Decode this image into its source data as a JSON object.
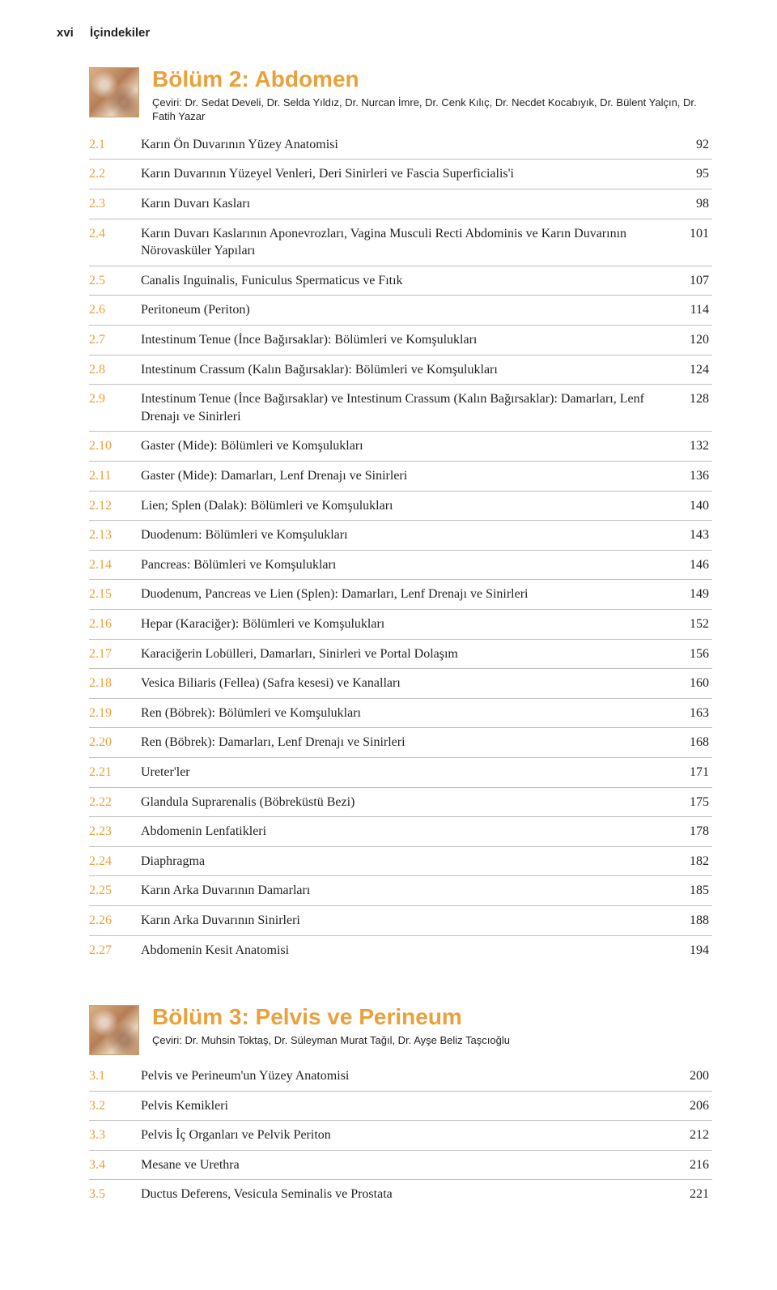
{
  "colors": {
    "accent": "#e9a13b",
    "text": "#231f20",
    "rule": "rgba(0,0,0,0.25)",
    "background": "#ffffff"
  },
  "typography": {
    "body_font": "Georgia, 'Times New Roman', serif",
    "heading_font": "Arial, Helvetica, sans-serif",
    "section_title_size_pt": 21,
    "body_size_pt": 12,
    "subtitle_size_pt": 10
  },
  "running_head": {
    "page_label": "xvi",
    "section_label": "İçindekiler"
  },
  "sections": [
    {
      "id": "abdomen",
      "title": "Bölüm 2: Abdomen",
      "subtitle": "Çeviri: Dr. Sedat Develi, Dr. Selda Yıldız, Dr. Nurcan İmre, Dr. Cenk Kılıç, Dr. Necdet Kocabıyık, Dr. Bülent Yalçın, Dr. Fatih Yazar",
      "entries": [
        {
          "num": "2.1",
          "title": "Karın Ön Duvarının Yüzey Anatomisi",
          "page": "92"
        },
        {
          "num": "2.2",
          "title": "Karın Duvarının Yüzeyel Venleri, Deri Sinirleri ve Fascia Superficialis'i",
          "page": "95"
        },
        {
          "num": "2.3",
          "title": "Karın Duvarı Kasları",
          "page": "98"
        },
        {
          "num": "2.4",
          "title": "Karın Duvarı Kaslarının Aponevrozları, Vagina Musculi Recti Abdominis ve Karın Duvarının Nörovasküler Yapıları",
          "page": "101"
        },
        {
          "num": "2.5",
          "title": "Canalis Inguinalis, Funiculus Spermaticus ve Fıtık",
          "page": "107"
        },
        {
          "num": "2.6",
          "title": "Peritoneum (Periton)",
          "page": "114"
        },
        {
          "num": "2.7",
          "title": "Intestinum Tenue (İnce Bağırsaklar): Bölümleri ve Komşulukları",
          "page": "120"
        },
        {
          "num": "2.8",
          "title": "Intestinum Crassum (Kalın Bağırsaklar): Bölümleri ve Komşulukları",
          "page": "124"
        },
        {
          "num": "2.9",
          "title": "Intestinum Tenue (İnce Bağırsaklar) ve Intestinum Crassum (Kalın Bağırsaklar): Damarları, Lenf Drenajı ve Sinirleri",
          "page": "128"
        },
        {
          "num": "2.10",
          "title": "Gaster (Mide): Bölümleri ve Komşulukları",
          "page": "132"
        },
        {
          "num": "2.11",
          "title": "Gaster (Mide): Damarları, Lenf Drenajı ve Sinirleri",
          "page": "136"
        },
        {
          "num": "2.12",
          "title": "Lien; Splen (Dalak): Bölümleri ve Komşulukları",
          "page": "140"
        },
        {
          "num": "2.13",
          "title": "Duodenum: Bölümleri ve Komşulukları",
          "page": "143"
        },
        {
          "num": "2.14",
          "title": "Pancreas: Bölümleri ve Komşulukları",
          "page": "146"
        },
        {
          "num": "2.15",
          "title": "Duodenum, Pancreas ve Lien (Splen): Damarları, Lenf Drenajı ve Sinirleri",
          "page": "149"
        },
        {
          "num": "2.16",
          "title": "Hepar (Karaciğer): Bölümleri ve Komşulukları",
          "page": "152"
        },
        {
          "num": "2.17",
          "title": "Karaciğerin Lobülleri, Damarları, Sinirleri ve Portal Dolaşım",
          "page": "156"
        },
        {
          "num": "2.18",
          "title": "Vesica Biliaris (Fellea) (Safra kesesi) ve Kanalları",
          "page": "160"
        },
        {
          "num": "2.19",
          "title": "Ren (Böbrek): Bölümleri ve Komşulukları",
          "page": "163"
        },
        {
          "num": "2.20",
          "title": "Ren (Böbrek): Damarları, Lenf Drenajı ve Sinirleri",
          "page": "168"
        },
        {
          "num": "2.21",
          "title": "Ureter'ler",
          "page": "171"
        },
        {
          "num": "2.22",
          "title": "Glandula Suprarenalis (Böbreküstü Bezi)",
          "page": "175"
        },
        {
          "num": "2.23",
          "title": "Abdomenin Lenfatikleri",
          "page": "178"
        },
        {
          "num": "2.24",
          "title": "Diaphragma",
          "page": "182"
        },
        {
          "num": "2.25",
          "title": "Karın Arka Duvarının Damarları",
          "page": "185"
        },
        {
          "num": "2.26",
          "title": "Karın Arka Duvarının Sinirleri",
          "page": "188"
        },
        {
          "num": "2.27",
          "title": "Abdomenin Kesit Anatomisi",
          "page": "194"
        }
      ]
    },
    {
      "id": "pelvis",
      "title": "Bölüm 3: Pelvis ve Perineum",
      "subtitle": "Çeviri: Dr. Muhsin Toktaş, Dr. Süleyman Murat Tağıl, Dr. Ayşe Beliz Taşcıoğlu",
      "entries": [
        {
          "num": "3.1",
          "title": "Pelvis ve Perineum'un Yüzey Anatomisi",
          "page": "200"
        },
        {
          "num": "3.2",
          "title": "Pelvis Kemikleri",
          "page": "206"
        },
        {
          "num": "3.3",
          "title": "Pelvis İç Organları ve Pelvik Periton",
          "page": "212"
        },
        {
          "num": "3.4",
          "title": "Mesane ve Urethra",
          "page": "216"
        },
        {
          "num": "3.5",
          "title": "Ductus Deferens, Vesicula Seminalis ve Prostata",
          "page": "221"
        }
      ]
    }
  ]
}
